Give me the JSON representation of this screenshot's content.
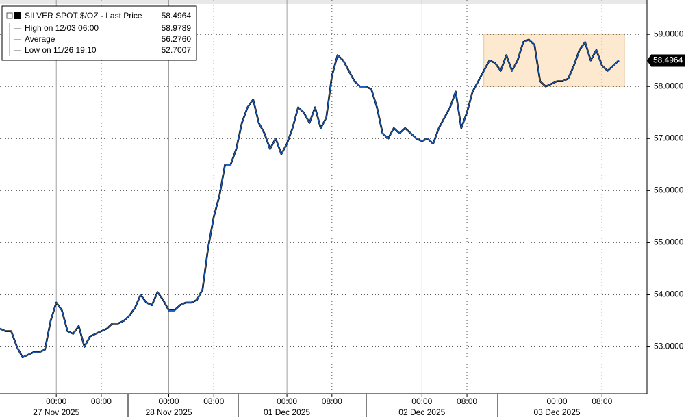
{
  "chart_data": {
    "type": "line",
    "series": [
      {
        "name": "SILVER SPOT $/OZ - Last Price",
        "color": "#1d5fbf",
        "values": [
          53.35,
          53.3,
          53.3,
          53.0,
          52.8,
          52.85,
          52.9,
          52.9,
          52.95,
          53.5,
          53.85,
          53.7,
          53.3,
          53.25,
          53.4,
          53.0,
          53.2,
          53.25,
          53.3,
          53.35,
          53.45,
          53.45,
          53.5,
          53.6,
          53.75,
          54.0,
          53.85,
          53.8,
          54.05,
          53.9,
          53.7,
          53.7,
          53.8,
          53.85,
          53.85,
          53.9,
          54.1,
          54.9,
          55.5,
          55.9,
          56.5,
          56.5,
          56.8,
          57.3,
          57.6,
          57.75,
          57.3,
          57.1,
          56.8,
          57.0,
          56.7,
          56.9,
          57.2,
          57.6,
          57.5,
          57.3,
          57.6,
          57.2,
          57.4,
          58.2,
          58.6,
          58.5,
          58.3,
          58.1,
          58.0,
          58.0,
          57.95,
          57.6,
          57.1,
          57.0,
          57.2,
          57.1,
          57.2,
          57.1,
          57.0,
          56.95,
          57.0,
          56.9,
          57.2,
          57.4,
          57.6,
          57.9,
          57.2,
          57.5,
          57.9,
          58.1,
          58.3,
          58.5,
          58.45,
          58.3,
          58.6,
          58.3,
          58.5,
          58.85,
          58.9,
          58.8,
          58.1,
          58.0,
          58.05,
          58.1,
          58.1,
          58.15,
          58.4,
          58.7,
          58.85,
          58.5,
          58.7,
          58.4,
          58.3,
          58.4,
          58.5,
          null,
          null,
          null,
          null
        ]
      }
    ],
    "categories": [
      null,
      null,
      null,
      null,
      null,
      null,
      null,
      null,
      null,
      null,
      "00:00",
      null,
      null,
      null,
      null,
      null,
      null,
      null,
      "08:00",
      null,
      null,
      null,
      null,
      null,
      null,
      null,
      null,
      null,
      null,
      null,
      "00:00",
      null,
      null,
      null,
      null,
      null,
      null,
      null,
      "08:00",
      null,
      null,
      null,
      null,
      null,
      null,
      null,
      null,
      null,
      null,
      null,
      null,
      "00:00",
      null,
      null,
      null,
      null,
      null,
      null,
      null,
      "08:00",
      null,
      null,
      null,
      null,
      null,
      null,
      null,
      null,
      null,
      null,
      null,
      null,
      null,
      null,
      null,
      "00:00",
      null,
      null,
      null,
      null,
      null,
      null,
      null,
      "08:00",
      null,
      null,
      null,
      null,
      null,
      null,
      null,
      null,
      null,
      null,
      null,
      null,
      null,
      null,
      null,
      "00:00",
      null,
      null,
      null,
      null,
      null,
      null,
      null,
      "08:00",
      null,
      null,
      null,
      null,
      null,
      null,
      null
    ],
    "x_date_labels": [
      {
        "label": "27 Nov 2025",
        "at": 10
      },
      {
        "label": "28 Nov 2025",
        "at": 30
      },
      {
        "label": "01 Dec 2025",
        "at": 51
      },
      {
        "label": "02 Dec 2025",
        "at": 75
      },
      {
        "label": "03 Dec 2025",
        "at": 99
      }
    ],
    "ylim": [
      52.1,
      59.66
    ],
    "yticks": [
      {
        "value": 53,
        "label": "53.0000"
      },
      {
        "value": 54,
        "label": "54.0000"
      },
      {
        "value": 55,
        "label": "55.0000"
      },
      {
        "value": 56,
        "label": "56.0000"
      },
      {
        "value": 57,
        "label": "57.0000"
      },
      {
        "value": 58,
        "label": "58.0000"
      },
      {
        "value": 59,
        "label": "59.0000"
      }
    ],
    "grid": true,
    "last_price": 58.4964,
    "stats": [
      {
        "label": "High on 12/03 06:00",
        "value": 58.9789
      },
      {
        "label": "Average",
        "value": 56.276,
        "value_label": "56.2760"
      },
      {
        "label": "Low on 11/26 19:10",
        "value": 52.7007
      }
    ],
    "highlight": {
      "y": [
        58,
        59
      ],
      "x": [
        86,
        111
      ]
    }
  }
}
